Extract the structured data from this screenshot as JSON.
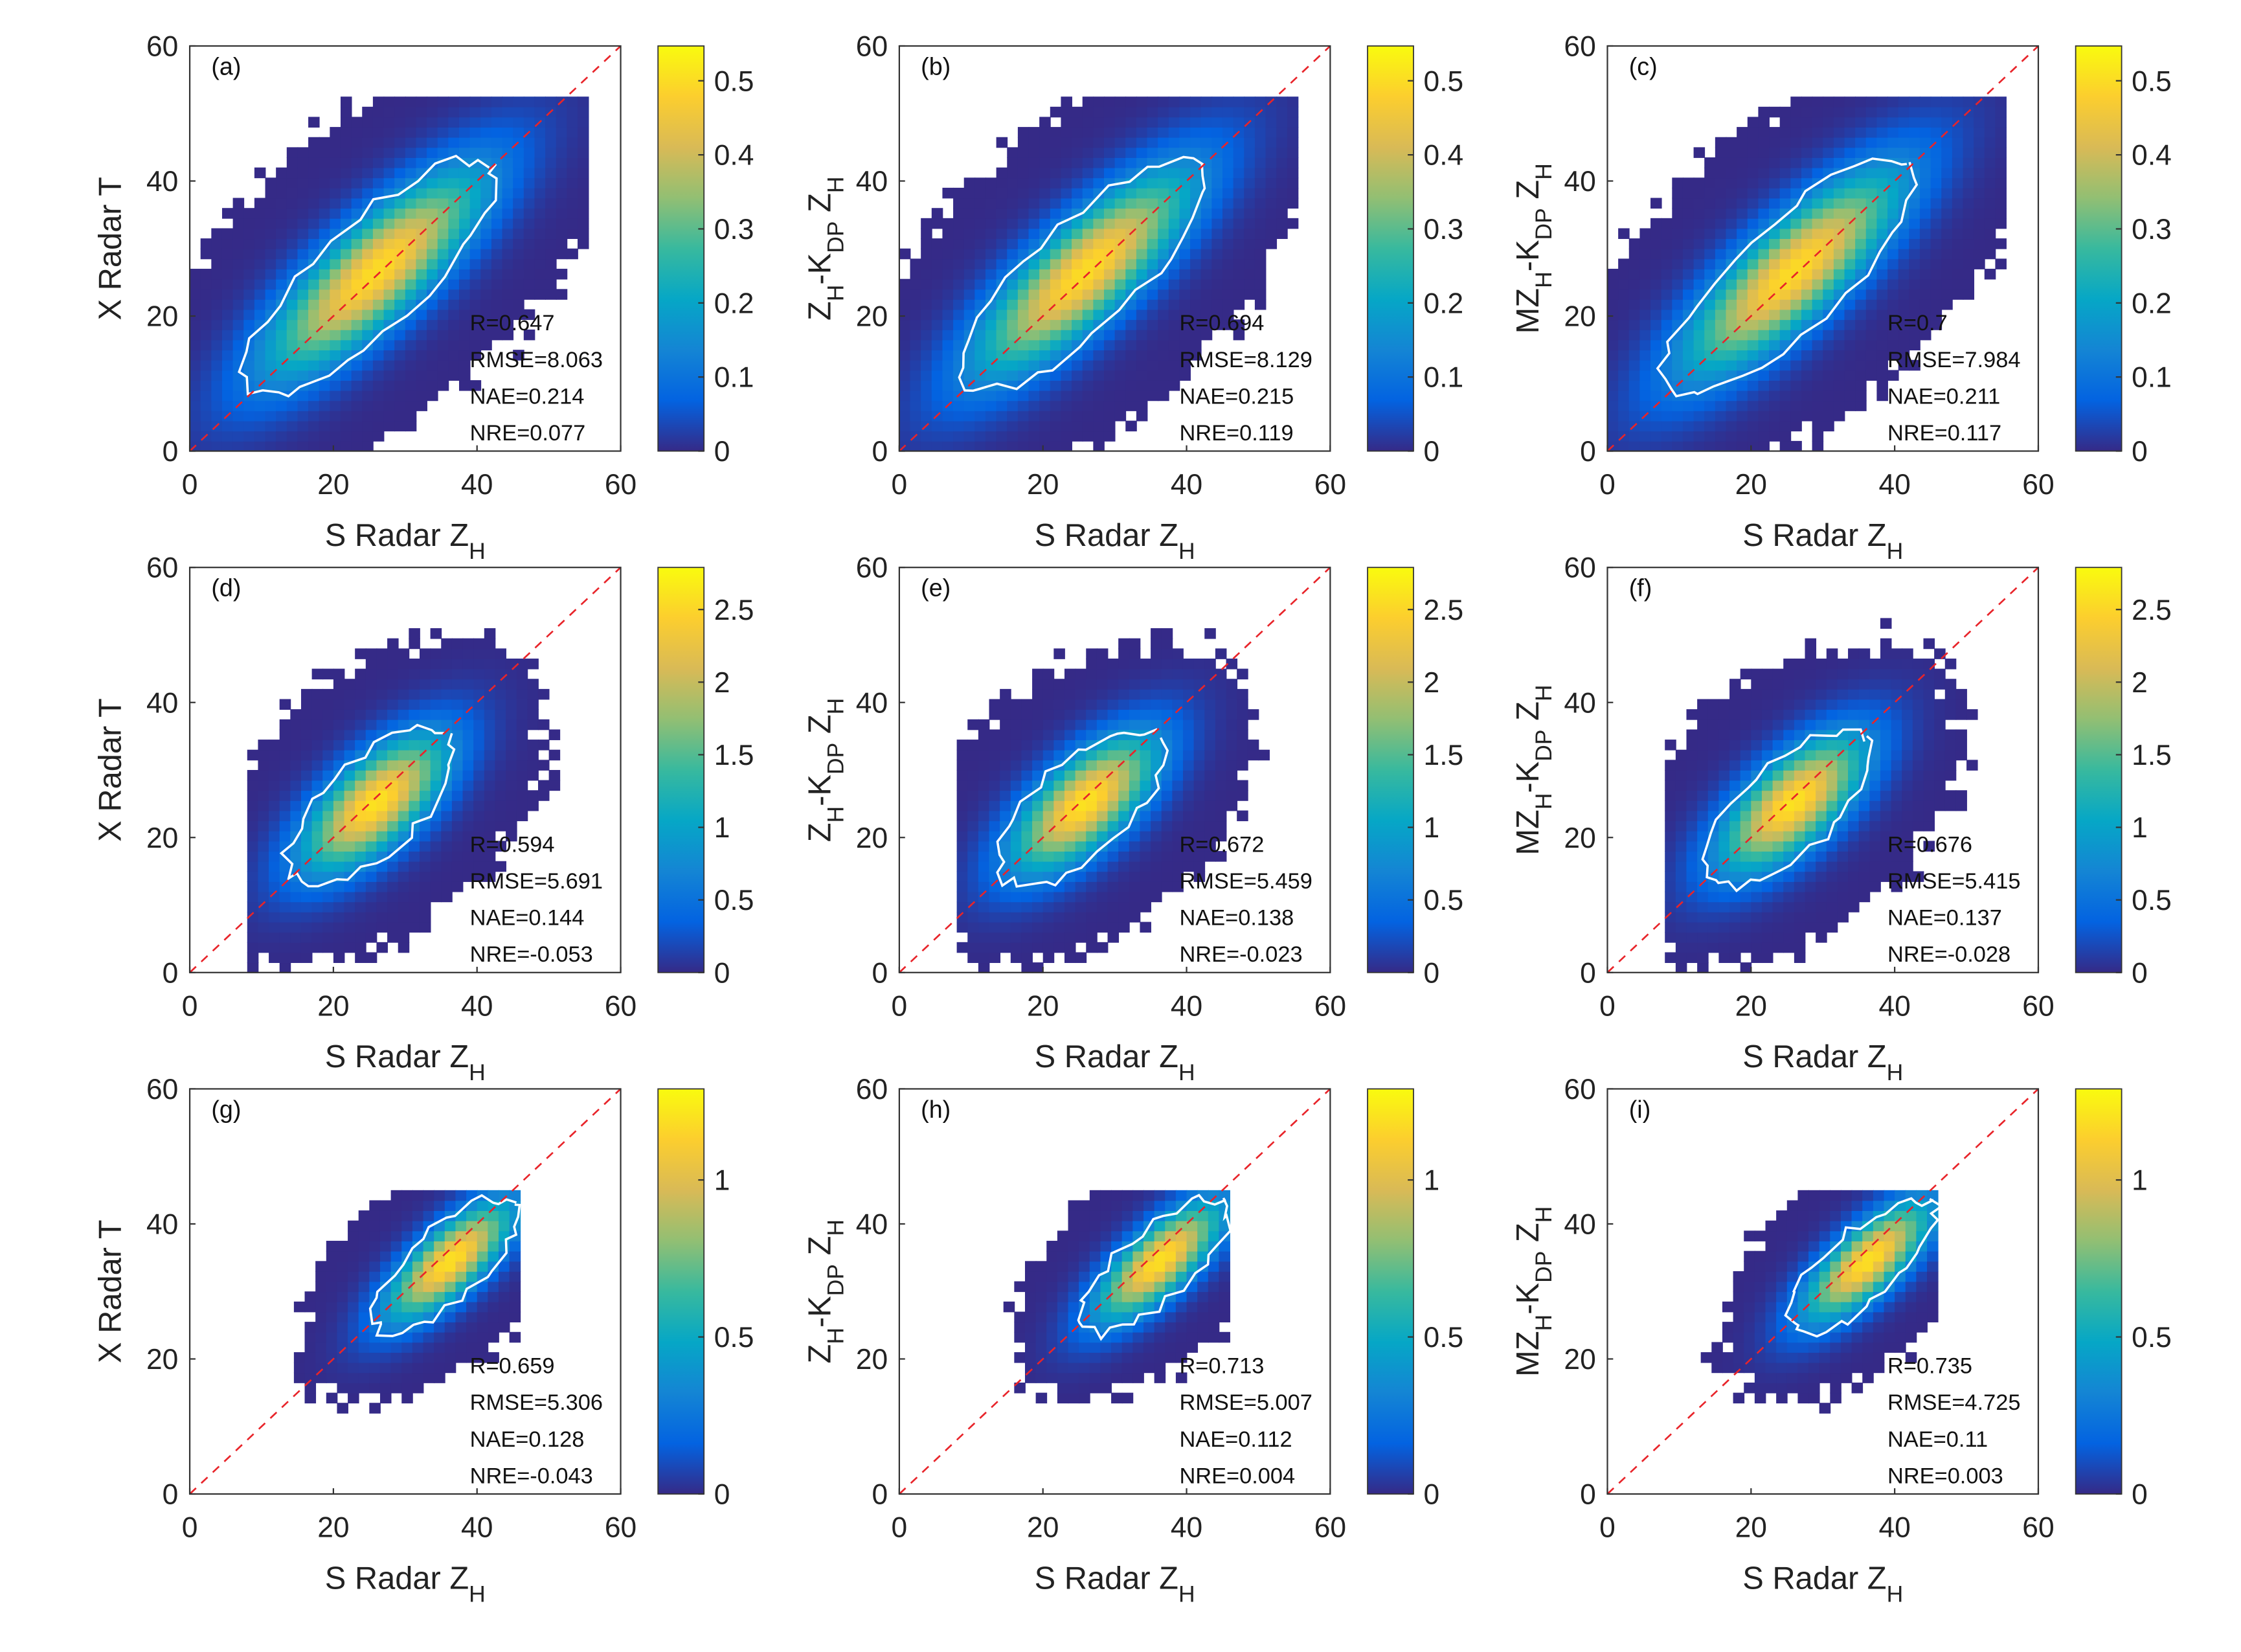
{
  "chart_data": {
    "type": "heatmap",
    "title": "",
    "xlabel_parts": [
      {
        "t": "S Radar Z"
      },
      {
        "t": "H",
        "sub": true
      }
    ],
    "xlim": [
      0,
      60
    ],
    "ylim": [
      0,
      60
    ],
    "xticks": [
      0,
      20,
      40,
      60
    ],
    "yticks": [
      0,
      20,
      40,
      60
    ],
    "reference_line": "y = x (red dashed)",
    "colors": {
      "reference_line": "#e8242a",
      "contour": "#ffffff",
      "axis": "#222222"
    },
    "colormap": [
      "#352a87",
      "#0363e1",
      "#1485d4",
      "#06a7c6",
      "#38b99e",
      "#92bf73",
      "#d9ba56",
      "#fcce2e",
      "#f9fb0e"
    ],
    "ylabels": [
      [
        {
          "t": "X Radar T"
        }
      ],
      [
        {
          "t": "Z"
        },
        {
          "t": "H",
          "sub": true
        },
        {
          "t": "-K"
        },
        {
          "t": "DP",
          "sub": true
        },
        {
          "t": " Z"
        },
        {
          "t": "H",
          "sub": true
        }
      ],
      [
        {
          "t": "MZ"
        },
        {
          "t": "H",
          "sub": true
        },
        {
          "t": "-K"
        },
        {
          "t": "DP",
          "sub": true
        },
        {
          "t": " Z"
        },
        {
          "t": "H",
          "sub": true
        }
      ]
    ],
    "rows": [
      {
        "colorbar": {
          "range": [
            0,
            0.547
          ],
          "ticks": [
            "0",
            "0.1",
            "0.2",
            "0.3",
            "0.4",
            "0.5"
          ],
          "tick_values": [
            0,
            0.1,
            0.2,
            0.3,
            0.4,
            0.5
          ]
        },
        "density_model": {
          "u_center": 36,
          "u_sigma": 14,
          "v_center": 0.5,
          "v_sigma": 4.5,
          "x_range": [
            0,
            55
          ],
          "y_range": [
            0,
            52
          ],
          "peak": 0.5
        }
      },
      {
        "colorbar": {
          "range": [
            0,
            2.79
          ],
          "ticks": [
            "0",
            "0.5",
            "1",
            "1.5",
            "2",
            "2.5"
          ],
          "tick_values": [
            0,
            0.5,
            1,
            1.5,
            2,
            2.5
          ]
        },
        "density_model": {
          "u_center": 35,
          "u_sigma": 9,
          "v_center": -0.5,
          "v_sigma": 4,
          "x_range": [
            8,
            55
          ],
          "y_range": [
            0,
            58
          ],
          "peak": 2.6
        }
      },
      {
        "colorbar": {
          "range": [
            0,
            1.29
          ],
          "ticks": [
            "0",
            "0.5",
            "1"
          ],
          "tick_values": [
            0,
            0.5,
            1
          ]
        },
        "density_model": {
          "u_center": 49,
          "u_sigma": 8,
          "v_center": -1.2,
          "v_sigma": 3,
          "x_range": [
            7,
            45
          ],
          "y_range": [
            0,
            45
          ],
          "peak": 1.2
        }
      }
    ],
    "panels": [
      {
        "label": "(a)",
        "row": 0,
        "col": 0,
        "stats": [
          "R=0.647",
          "RMSE=8.063",
          "NAE=0.214",
          "NRE=0.077"
        ]
      },
      {
        "label": "(b)",
        "row": 0,
        "col": 1,
        "stats": [
          "R=0.694",
          "RMSE=8.129",
          "NAE=0.215",
          "NRE=0.119"
        ]
      },
      {
        "label": "(c)",
        "row": 0,
        "col": 2,
        "stats": [
          "R=0.7",
          "RMSE=7.984",
          "NAE=0.211",
          "NRE=0.117"
        ]
      },
      {
        "label": "(d)",
        "row": 1,
        "col": 0,
        "stats": [
          "R=0.594",
          "RMSE=5.691",
          "NAE=0.144",
          "NRE=-0.053"
        ]
      },
      {
        "label": "(e)",
        "row": 1,
        "col": 1,
        "stats": [
          "R=0.672",
          "RMSE=5.459",
          "NAE=0.138",
          "NRE=-0.023"
        ]
      },
      {
        "label": "(f)",
        "row": 1,
        "col": 2,
        "stats": [
          "R=0.676",
          "RMSE=5.415",
          "NAE=0.137",
          "NRE=-0.028"
        ]
      },
      {
        "label": "(g)",
        "row": 2,
        "col": 0,
        "stats": [
          "R=0.659",
          "RMSE=5.306",
          "NAE=0.128",
          "NRE=-0.043"
        ]
      },
      {
        "label": "(h)",
        "row": 2,
        "col": 1,
        "stats": [
          "R=0.713",
          "RMSE=5.007",
          "NAE=0.112",
          "NRE=0.004"
        ]
      },
      {
        "label": "(i)",
        "row": 2,
        "col": 2,
        "stats": [
          "R=0.735",
          "RMSE=4.725",
          "NAE=0.11",
          "NRE=0.003"
        ]
      }
    ]
  }
}
